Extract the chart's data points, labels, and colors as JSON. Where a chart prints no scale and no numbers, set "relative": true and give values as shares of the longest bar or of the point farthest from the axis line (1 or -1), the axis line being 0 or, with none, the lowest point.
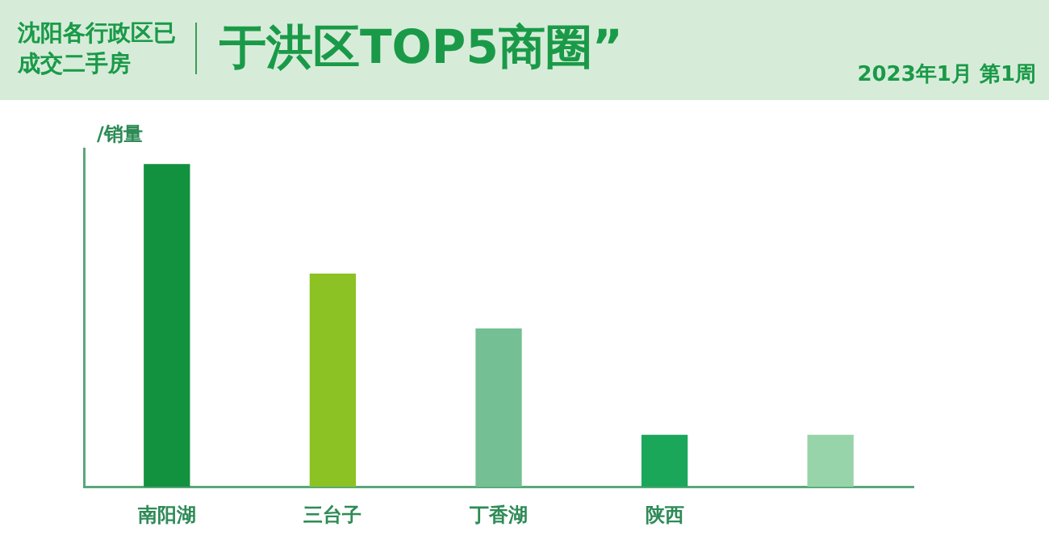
{
  "chart_data": {
    "type": "bar",
    "title": "于洪区TOP5商圈”",
    "subtitle": "2023年1月 第1周",
    "annotations": [
      "沈阳各行政区已成交二手房"
    ],
    "ylabel": "/销量",
    "relative": true,
    "categories": [
      "南阳湖",
      "三台子",
      "丁香湖",
      "陕西",
      null
    ],
    "values": [
      1,
      0.66,
      0.49,
      0.16,
      0.16
    ],
    "colors": [
      "#12913f",
      "#8cc223",
      "#74bf93",
      "#1aa75a",
      "#98d4a9"
    ]
  }
}
